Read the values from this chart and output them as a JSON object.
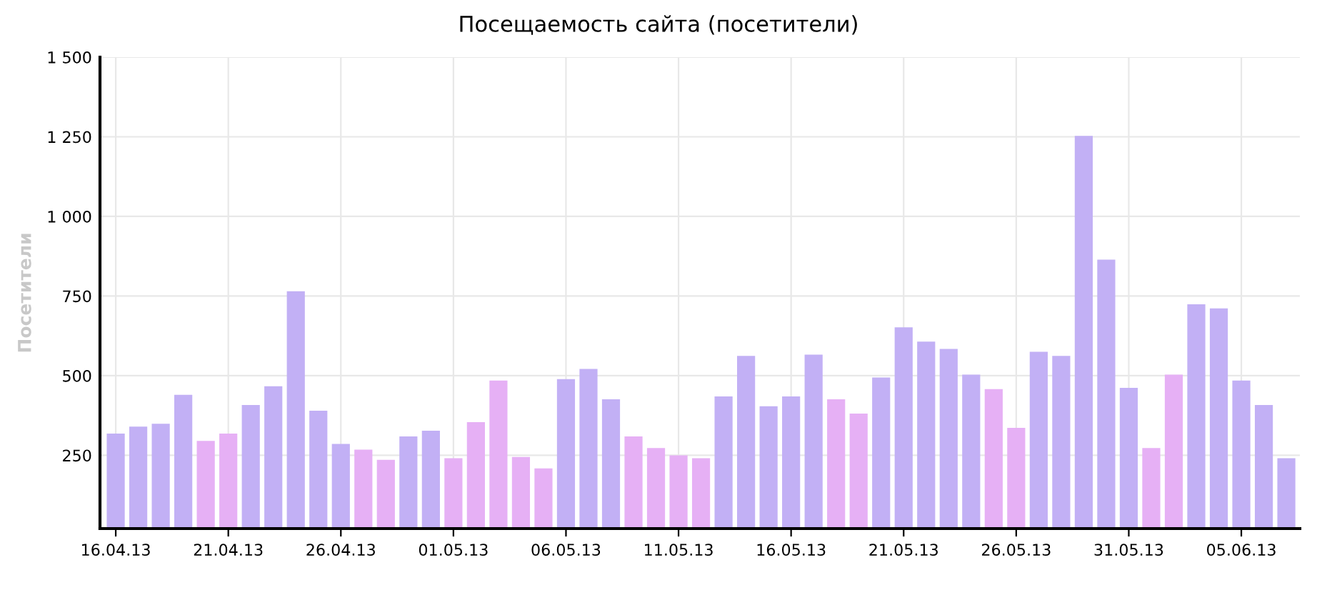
{
  "chart_data": {
    "type": "bar",
    "title": "Посещаемость сайта (посетители)",
    "ylabel": "Посетители",
    "categories": [
      "16.04.13",
      null,
      null,
      null,
      null,
      "21.04.13",
      null,
      null,
      null,
      null,
      "26.04.13",
      null,
      null,
      null,
      null,
      "01.05.13",
      null,
      null,
      null,
      null,
      "06.05.13",
      null,
      null,
      null,
      null,
      "11.05.13",
      null,
      null,
      null,
      null,
      "16.05.13",
      null,
      null,
      null,
      null,
      "21.05.13",
      null,
      null,
      null,
      null,
      "26.05.13",
      null,
      null,
      null,
      null,
      "31.05.13",
      null,
      null,
      null,
      null,
      "05.06.13",
      null,
      null
    ],
    "values": [
      318,
      340,
      349,
      440,
      295,
      318,
      408,
      467,
      765,
      390,
      286,
      268,
      236,
      309,
      327,
      241,
      354,
      485,
      245,
      209,
      489,
      521,
      426,
      309,
      273,
      250,
      241,
      435,
      562,
      404,
      435,
      566,
      426,
      381,
      494,
      652,
      607,
      584,
      503,
      458,
      336,
      575,
      562,
      1253,
      864,
      462,
      273,
      503,
      724,
      711,
      485,
      408,
      241
    ],
    "colors": [
      "#c2b0f5",
      "#c2b0f5",
      "#c2b0f5",
      "#c2b0f5",
      "#e6b0f5",
      "#e6b0f5",
      "#c2b0f5",
      "#c2b0f5",
      "#c2b0f5",
      "#c2b0f5",
      "#c2b0f5",
      "#e6b0f5",
      "#e6b0f5",
      "#c2b0f5",
      "#c2b0f5",
      "#e6b0f5",
      "#e6b0f5",
      "#e6b0f5",
      "#e6b0f5",
      "#e6b0f5",
      "#c2b0f5",
      "#c2b0f5",
      "#c2b0f5",
      "#e6b0f5",
      "#e6b0f5",
      "#e6b0f5",
      "#e6b0f5",
      "#c2b0f5",
      "#c2b0f5",
      "#c2b0f5",
      "#c2b0f5",
      "#c2b0f5",
      "#e6b0f5",
      "#e6b0f5",
      "#c2b0f5",
      "#c2b0f5",
      "#c2b0f5",
      "#c2b0f5",
      "#c2b0f5",
      "#e6b0f5",
      "#e6b0f5",
      "#c2b0f5",
      "#c2b0f5",
      "#c2b0f5",
      "#c2b0f5",
      "#c2b0f5",
      "#e6b0f5",
      "#e6b0f5",
      "#c2b0f5",
      "#c2b0f5",
      "#c2b0f5",
      "#c2b0f5",
      "#c2b0f5"
    ],
    "ylim": [
      20,
      1500
    ],
    "yticks": [
      {
        "value": 250,
        "label": "250"
      },
      {
        "value": 500,
        "label": "500"
      },
      {
        "value": 750,
        "label": "750"
      },
      {
        "value": 1000,
        "label": "1 000"
      },
      {
        "value": 1250,
        "label": "1 250"
      },
      {
        "value": 1500,
        "label": "1 500"
      }
    ],
    "grid": true
  }
}
